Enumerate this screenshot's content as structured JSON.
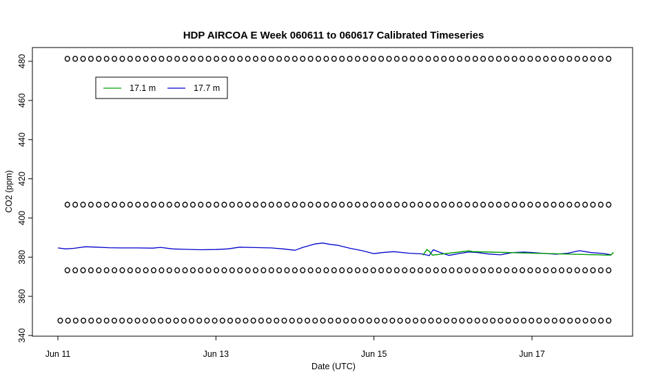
{
  "chart_data": {
    "type": "line",
    "title": "HDP AIRCOA E  Week 060611 to 060617  Calibrated Timeseries",
    "xlabel": "Date (UTC)",
    "ylabel": "CO2 (ppm)",
    "x_unit": "days",
    "xlim": [
      11.0,
      18.1
    ],
    "ylim": [
      340,
      485
    ],
    "x_ticks": [
      {
        "value": 11,
        "label": "Jun 11"
      },
      {
        "value": 13,
        "label": "Jun 13"
      },
      {
        "value": 15,
        "label": "Jun 15"
      },
      {
        "value": 17,
        "label": "Jun 17"
      }
    ],
    "y_ticks": [
      340,
      360,
      380,
      400,
      420,
      440,
      460,
      480
    ],
    "legend": {
      "position": "top-left",
      "entries": [
        {
          "label": "17.1 m",
          "color": "#00a000"
        },
        {
          "label": "17.7 m",
          "color": "#0000cc"
        }
      ]
    },
    "series": [
      {
        "name": "17.7 m",
        "color": "#0000cc",
        "x": [
          11.0,
          11.1,
          11.2,
          11.35,
          11.5,
          11.65,
          11.8,
          12.0,
          12.2,
          12.3,
          12.45,
          12.6,
          12.8,
          13.0,
          13.15,
          13.3,
          13.5,
          13.7,
          13.85,
          14.0,
          14.1,
          14.25,
          14.35,
          14.45,
          14.55,
          14.7,
          14.85,
          15.0,
          15.1,
          15.25,
          15.45,
          15.6,
          15.7,
          15.75,
          15.85,
          15.95,
          16.1,
          16.2,
          16.3,
          16.45,
          16.6,
          16.75,
          16.9,
          17.0,
          17.15,
          17.3,
          17.45,
          17.6,
          17.75,
          17.9,
          18.0
        ],
        "y": [
          384.7,
          384.2,
          384.5,
          385.3,
          385.1,
          384.8,
          384.7,
          384.7,
          384.6,
          385.0,
          384.2,
          384.0,
          383.8,
          383.9,
          384.2,
          385.1,
          384.9,
          384.7,
          384.2,
          383.5,
          385.0,
          386.7,
          387.2,
          386.5,
          386.0,
          384.5,
          383.3,
          381.8,
          382.3,
          382.8,
          382.0,
          381.7,
          380.8,
          383.8,
          382.2,
          380.9,
          382.0,
          382.6,
          382.4,
          381.6,
          381.2,
          382.3,
          382.6,
          382.4,
          381.9,
          381.5,
          382.0,
          383.3,
          382.3,
          381.9,
          381.2
        ]
      },
      {
        "name": "17.1 m",
        "color": "#00a000",
        "x": [
          15.62,
          15.67,
          15.7,
          15.72,
          15.74,
          16.2,
          16.25,
          18.0,
          18.03
        ],
        "y": [
          381.0,
          383.9,
          383.0,
          382.0,
          381.0,
          383.2,
          382.8,
          381.0,
          382.5
        ]
      }
    ],
    "marker_rows": [
      {
        "y": 481.3,
        "x_start": 11.12,
        "x_end": 17.97,
        "count": 70
      },
      {
        "y": 406.8,
        "x_start": 11.12,
        "x_end": 17.97,
        "count": 70
      },
      {
        "y": 373.3,
        "x_start": 11.12,
        "x_end": 17.97,
        "count": 70
      },
      {
        "y": 347.6,
        "x_start": 11.03,
        "x_end": 17.97,
        "count": 72
      }
    ],
    "grid": false
  }
}
